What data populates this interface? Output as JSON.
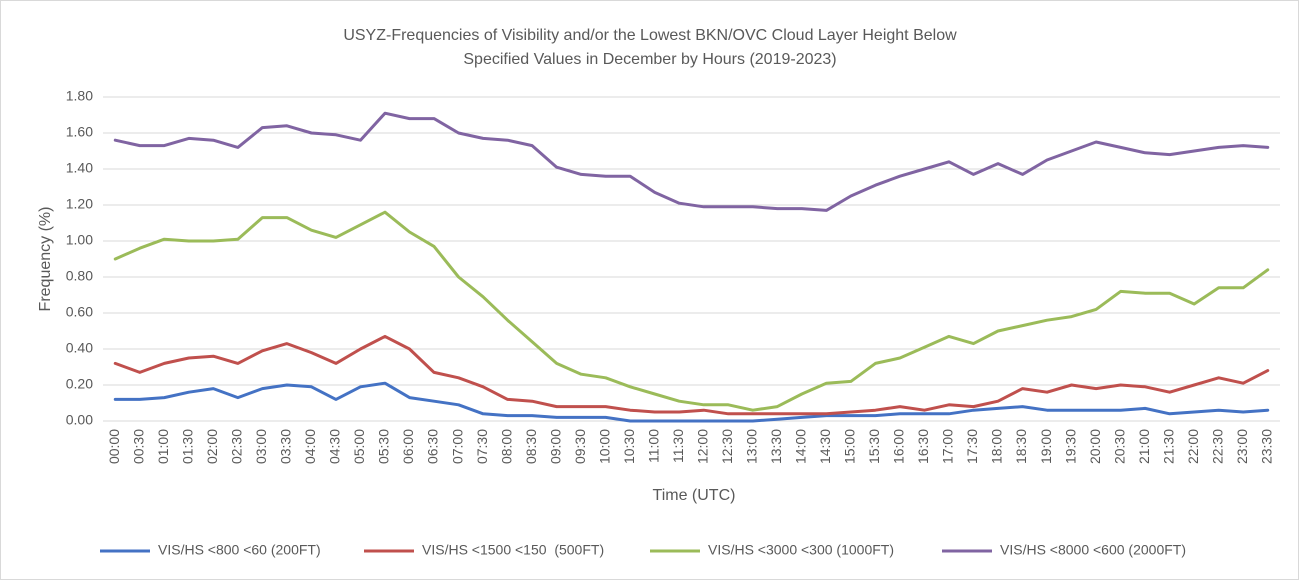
{
  "chart_data": {
    "type": "line",
    "title": [
      "USYZ-Frequencies of Visibility and/or the Lowest BKN/OVC Cloud Layer Height Below",
      "Specified Values in December by Hours (2019-2023)"
    ],
    "x_label": "Time (UTC)",
    "y_label": "Frequency (%)",
    "categories": [
      "00:00",
      "00:30",
      "01:00",
      "01:30",
      "02:00",
      "02:30",
      "03:00",
      "03:30",
      "04:00",
      "04:30",
      "05:00",
      "05:30",
      "06:00",
      "06:30",
      "07:00",
      "07:30",
      "08:00",
      "08:30",
      "09:00",
      "09:30",
      "10:00",
      "10:30",
      "11:00",
      "11:30",
      "12:00",
      "12:30",
      "13:00",
      "13:30",
      "14:00",
      "14:30",
      "15:00",
      "15:30",
      "16:00",
      "16:30",
      "17:00",
      "17:30",
      "18:00",
      "18:30",
      "19:00",
      "19:30",
      "20:00",
      "20:30",
      "21:00",
      "21:30",
      "22:00",
      "22:30",
      "23:00",
      "23:30"
    ],
    "series": [
      {
        "name": "VIS/HS <800 <60 (200FT)",
        "color": "#4472c4",
        "values": [
          0.12,
          0.12,
          0.13,
          0.16,
          0.18,
          0.13,
          0.18,
          0.2,
          0.19,
          0.12,
          0.19,
          0.21,
          0.13,
          0.11,
          0.09,
          0.04,
          0.03,
          0.03,
          0.02,
          0.02,
          0.02,
          0.0,
          0.0,
          0.0,
          0.0,
          0.0,
          0.0,
          0.01,
          0.02,
          0.03,
          0.03,
          0.03,
          0.04,
          0.04,
          0.04,
          0.06,
          0.07,
          0.08,
          0.06,
          0.06,
          0.06,
          0.06,
          0.07,
          0.04,
          0.05,
          0.06,
          0.05,
          0.06
        ]
      },
      {
        "name": "VIS/HS <1500 <150  (500FT)",
        "color": "#c0504d",
        "values": [
          0.32,
          0.27,
          0.32,
          0.35,
          0.36,
          0.32,
          0.39,
          0.43,
          0.38,
          0.32,
          0.4,
          0.47,
          0.4,
          0.27,
          0.24,
          0.19,
          0.12,
          0.11,
          0.08,
          0.08,
          0.08,
          0.06,
          0.05,
          0.05,
          0.06,
          0.04,
          0.04,
          0.04,
          0.04,
          0.04,
          0.05,
          0.06,
          0.08,
          0.06,
          0.09,
          0.08,
          0.11,
          0.18,
          0.16,
          0.2,
          0.18,
          0.2,
          0.19,
          0.16,
          0.2,
          0.24,
          0.21,
          0.28
        ]
      },
      {
        "name": "VIS/HS <3000 <300 (1000FT)",
        "color": "#9bbb59",
        "values": [
          0.9,
          0.96,
          1.01,
          1.0,
          1.0,
          1.01,
          1.13,
          1.13,
          1.06,
          1.02,
          1.09,
          1.16,
          1.05,
          0.97,
          0.8,
          0.69,
          0.56,
          0.44,
          0.32,
          0.26,
          0.24,
          0.19,
          0.15,
          0.11,
          0.09,
          0.09,
          0.06,
          0.08,
          0.15,
          0.21,
          0.22,
          0.32,
          0.35,
          0.41,
          0.47,
          0.43,
          0.5,
          0.53,
          0.56,
          0.58,
          0.62,
          0.72,
          0.71,
          0.71,
          0.65,
          0.74,
          0.74,
          0.84
        ]
      },
      {
        "name": "VIS/HS <8000 <600 (2000FT)",
        "color": "#8064a2",
        "values": [
          1.56,
          1.53,
          1.53,
          1.57,
          1.56,
          1.52,
          1.63,
          1.64,
          1.6,
          1.59,
          1.56,
          1.71,
          1.68,
          1.68,
          1.6,
          1.57,
          1.56,
          1.53,
          1.41,
          1.37,
          1.36,
          1.36,
          1.27,
          1.21,
          1.19,
          1.19,
          1.19,
          1.18,
          1.18,
          1.17,
          1.25,
          1.31,
          1.36,
          1.4,
          1.44,
          1.37,
          1.43,
          1.37,
          1.45,
          1.5,
          1.55,
          1.52,
          1.49,
          1.48,
          1.5,
          1.52,
          1.53,
          1.52
        ]
      }
    ],
    "ylim": [
      0,
      1.8
    ],
    "yticks": [
      {
        "value": 0,
        "label": "0.00"
      },
      {
        "value": 0.2,
        "label": "0.20"
      },
      {
        "value": 0.4,
        "label": "0.40"
      },
      {
        "value": 0.6,
        "label": "0.60"
      },
      {
        "value": 0.8,
        "label": "0.80"
      },
      {
        "value": 1,
        "label": "1.00"
      },
      {
        "value": 1.2,
        "label": "1.20"
      },
      {
        "value": 1.4,
        "label": "1.40"
      },
      {
        "value": 1.6,
        "label": "1.60"
      },
      {
        "value": 1.8,
        "label": "1.80"
      }
    ],
    "grid": true,
    "legend": "bottom"
  }
}
